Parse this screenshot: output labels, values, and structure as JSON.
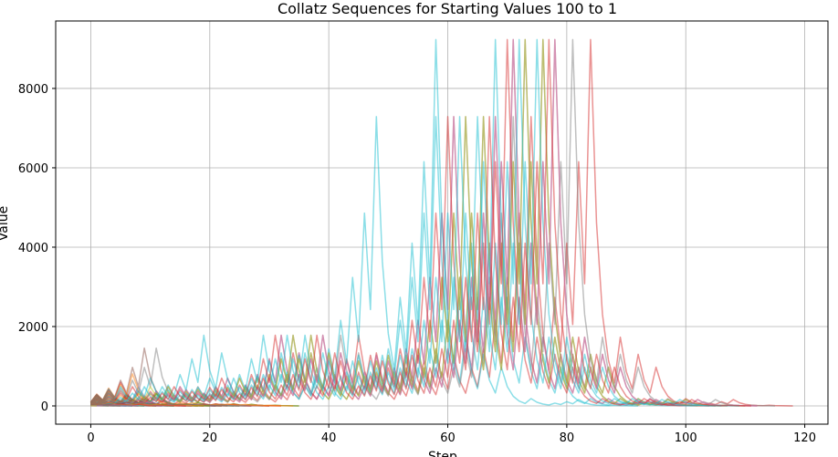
{
  "chart_data": {
    "type": "line",
    "title": "Collatz Sequences for Starting Values 100 to 1",
    "xlabel": "Step",
    "ylabel": "Value",
    "xlim": [
      -5.9,
      123.9
    ],
    "ylim": [
      -460,
      9700
    ],
    "xticks": [
      0,
      20,
      40,
      60,
      80,
      100,
      120
    ],
    "yticks": [
      0,
      2000,
      4000,
      6000,
      8000
    ],
    "grid": true,
    "line_alpha": 0.5,
    "colors": [
      "#1f77b4",
      "#ff7f0e",
      "#2ca02c",
      "#d62728",
      "#9467bd",
      "#8c564b",
      "#e377c2",
      "#7f7f7f",
      "#bcbd22",
      "#17becf"
    ],
    "start_values": [
      100,
      99,
      98,
      97,
      96,
      95,
      94,
      93,
      92,
      91,
      90,
      89,
      88,
      87,
      86,
      85,
      84,
      83,
      82,
      81,
      80,
      79,
      78,
      77,
      76,
      75,
      74,
      73,
      72,
      71,
      70,
      69,
      68,
      67,
      66,
      65,
      64,
      63,
      62,
      61,
      60,
      59,
      58,
      57,
      56,
      55,
      54,
      53,
      52,
      51,
      50,
      49,
      48,
      47,
      46,
      45,
      44,
      43,
      42,
      41,
      40,
      39,
      38,
      37,
      36,
      35,
      34,
      33,
      32,
      31,
      30,
      29,
      28,
      27,
      26,
      25,
      24,
      23,
      22,
      21,
      20,
      19,
      18,
      17,
      16,
      15,
      14,
      13,
      12,
      11,
      10,
      9,
      8,
      7,
      6,
      5,
      4,
      3,
      2,
      1
    ],
    "series_rule": "y[0] = start; y[k+1] = y[k]/2 if y[k] even else 3*y[k]+1; stop at 1"
  }
}
